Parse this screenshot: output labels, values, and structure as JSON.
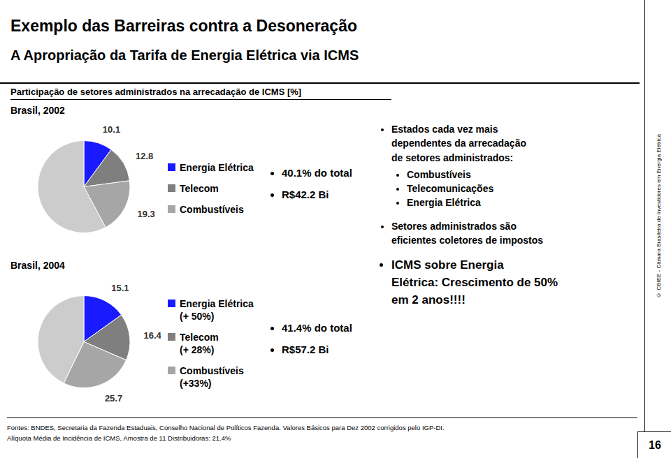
{
  "title": "Exemplo das Barreiras contra a Desoneração",
  "subtitle": "A Apropriação da Tarifa de Energia Elétrica via ICMS",
  "section_title": "Participação de setores administrados na arrecadação de ICMS [%]",
  "chart_data": [
    {
      "type": "pie",
      "title": "Brasil, 2002",
      "categories": [
        "Energia Elétrica",
        "Telecom",
        "Combustíveis",
        null
      ],
      "values": [
        10.1,
        12.8,
        19.3,
        57.8
      ],
      "value_labels": [
        "10.1",
        "12.8",
        "19.3",
        null
      ],
      "colors": [
        "#1a1aff",
        "#7f7f7f",
        "#a6a6a6",
        "#cccccc"
      ],
      "annotations": [
        "40.1% do total",
        "R$42.2 Bi"
      ]
    },
    {
      "type": "pie",
      "title": "Brasil, 2004",
      "categories": [
        "Energia Elétrica\n(+ 50%)",
        "Telecom\n(+ 28%)",
        "Combustíveis\n(+33%)",
        null
      ],
      "values": [
        15.1,
        16.4,
        25.7,
        42.8
      ],
      "value_labels": [
        "15.1",
        "16.4",
        "25.7",
        null
      ],
      "colors": [
        "#1a1aff",
        "#7f7f7f",
        "#a6a6a6",
        "#cccccc"
      ],
      "annotations": [
        "41.4% do total",
        "R$57.2 Bi"
      ]
    }
  ],
  "notes": [
    {
      "text": "Estados cada vez mais\ndependentes da arrecadação\nde setores administrados:",
      "items": [
        "Combustíveis",
        "Telecomunicações",
        "Energia Elétrica"
      ]
    },
    {
      "text": "Setores administrados são\neficientes coletores de impostos",
      "items": []
    },
    {
      "text": "ICMS sobre Energia\nElétrica: Crescimento de 50%\nem 2 anos!!!!",
      "items": []
    }
  ],
  "footer": [
    "Fontes: BNDES, Secretaria da Fazenda Estaduais, Conselho Nacional de Políticos Fazenda. Valores Básicos para Dez 2002 corrigidos pelo IGP-DI.",
    "Alíquota Média de Incidência de ICMS, Amostra de 11 Distribuidoras: 21.4%"
  ],
  "page_number": "16",
  "sidebar": "© CBIEE - Câmara Brasileira de Investidores em Energia Elétrica"
}
